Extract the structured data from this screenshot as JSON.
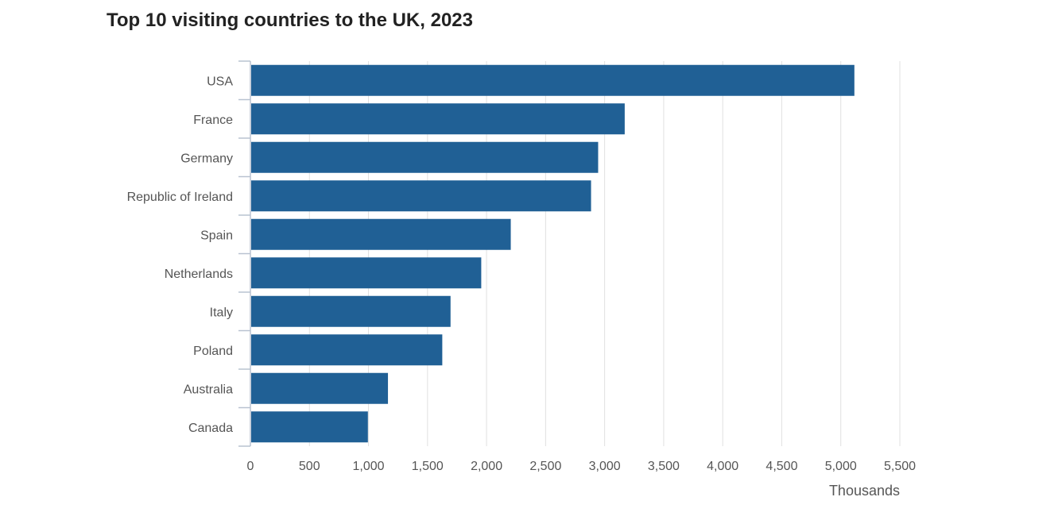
{
  "title": "Top 10 visiting countries to the UK, 2023",
  "colors": {
    "bar": "#206095",
    "grid": "#e0e0e0",
    "axis": "#b8c2d0",
    "label": "#555555"
  },
  "chart_data": {
    "type": "bar",
    "orientation": "horizontal",
    "title": "Top 10 visiting countries to the UK, 2023",
    "categories": [
      "USA",
      "France",
      "Germany",
      "Republic of Ireland",
      "Spain",
      "Netherlands",
      "Italy",
      "Poland",
      "Australia",
      "Canada"
    ],
    "values": [
      5115,
      3170,
      2945,
      2885,
      2205,
      1955,
      1695,
      1625,
      1165,
      995
    ],
    "xlabel": "Thousands",
    "ylabel": "",
    "xlim": [
      0,
      5500
    ],
    "xticks": [
      0,
      500,
      1000,
      1500,
      2000,
      2500,
      3000,
      3500,
      4000,
      4500,
      5000,
      5500
    ],
    "xtick_labels": [
      "0",
      "500",
      "1,000",
      "1,500",
      "2,000",
      "2,500",
      "3,000",
      "3,500",
      "4,000",
      "4,500",
      "5,000",
      "5,500"
    ],
    "grid": true,
    "legend": "none"
  }
}
